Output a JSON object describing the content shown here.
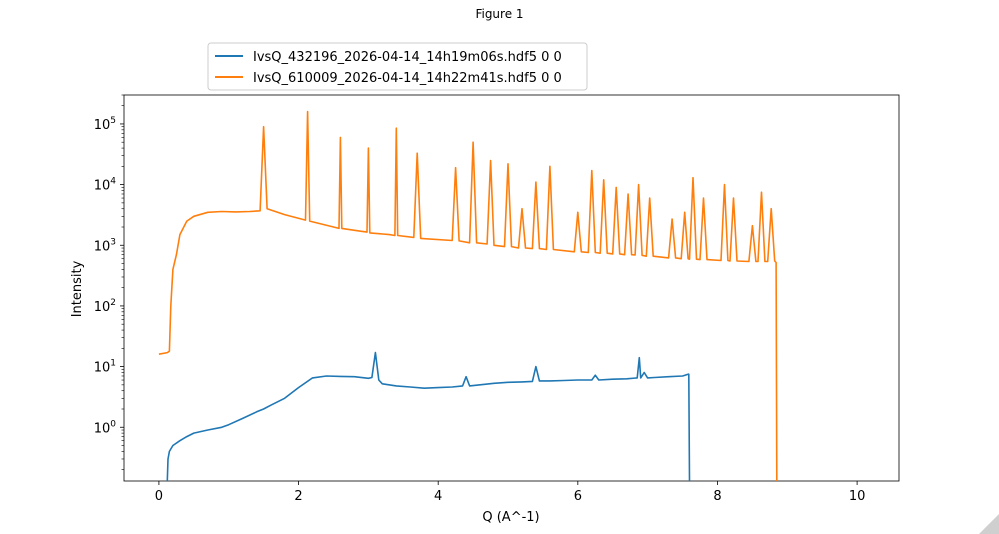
{
  "window": {
    "title": "Figure 1"
  },
  "chart_data": {
    "type": "line",
    "title": "",
    "xlabel": "Q (A^-1)",
    "ylabel": "Intensity",
    "xlim": [
      -0.5,
      10.6
    ],
    "ylim": [
      0.13,
      300000
    ],
    "yscale": "log",
    "grid": false,
    "legend_position": "upper-left-outside",
    "xticks": [
      0,
      2,
      4,
      6,
      8,
      10
    ],
    "xtick_labels": [
      "0",
      "2",
      "4",
      "6",
      "8",
      "10"
    ],
    "yticks": [
      1,
      10,
      100,
      1000,
      10000,
      100000
    ],
    "ytick_labels": [
      "10^0",
      "10^1",
      "10^2",
      "10^3",
      "10^4",
      "10^5"
    ],
    "series": [
      {
        "name": "IvsQ_432196_2026-04-14_14h19m06s.hdf5 0 0",
        "color": "#1f77b4",
        "x": [
          0.12,
          0.13,
          0.15,
          0.2,
          0.3,
          0.4,
          0.5,
          0.7,
          0.9,
          1.0,
          1.2,
          1.4,
          1.5,
          1.6,
          1.8,
          2.0,
          2.2,
          2.4,
          2.6,
          2.8,
          3.0,
          3.05,
          3.1,
          3.15,
          3.2,
          3.4,
          3.6,
          3.8,
          4.0,
          4.2,
          4.35,
          4.4,
          4.45,
          4.6,
          4.8,
          5.0,
          5.2,
          5.35,
          5.4,
          5.45,
          5.6,
          5.8,
          6.0,
          6.2,
          6.25,
          6.3,
          6.5,
          6.7,
          6.85,
          6.88,
          6.9,
          6.95,
          7.0,
          7.1,
          7.3,
          7.5,
          7.58,
          7.59,
          7.6
        ],
        "y": [
          0.13,
          0.3,
          0.4,
          0.5,
          0.6,
          0.7,
          0.8,
          0.9,
          1.0,
          1.1,
          1.4,
          1.8,
          2.0,
          2.3,
          3.0,
          4.5,
          6.5,
          7.0,
          6.9,
          6.8,
          6.4,
          6.6,
          17.0,
          6.0,
          5.2,
          4.8,
          4.6,
          4.4,
          4.5,
          4.6,
          4.8,
          6.8,
          4.8,
          5.0,
          5.3,
          5.5,
          5.6,
          5.7,
          10.0,
          5.8,
          5.8,
          5.9,
          6.0,
          6.0,
          7.2,
          6.0,
          6.2,
          6.3,
          6.5,
          14.0,
          6.5,
          8.0,
          6.5,
          6.6,
          6.8,
          7.0,
          7.5,
          7.5,
          0.13
        ]
      },
      {
        "name": "IvsQ_610009_2026-04-14_14h22m41s.hdf5 0 0",
        "color": "#ff7f0e",
        "x": [
          0.0,
          0.12,
          0.15,
          0.17,
          0.2,
          0.25,
          0.3,
          0.4,
          0.5,
          0.7,
          0.9,
          1.1,
          1.3,
          1.45,
          1.5,
          1.55,
          1.8,
          2.1,
          2.13,
          2.16,
          2.5,
          2.58,
          2.6,
          2.62,
          2.9,
          2.98,
          3.0,
          3.02,
          3.3,
          3.38,
          3.4,
          3.42,
          3.65,
          3.7,
          3.75,
          4.2,
          4.25,
          4.3,
          4.45,
          4.5,
          4.55,
          4.7,
          4.75,
          4.8,
          4.95,
          5.0,
          5.05,
          5.15,
          5.2,
          5.25,
          5.35,
          5.4,
          5.45,
          5.55,
          5.6,
          5.65,
          5.95,
          6.0,
          6.05,
          6.15,
          6.2,
          6.25,
          6.32,
          6.37,
          6.42,
          6.5,
          6.55,
          6.6,
          6.67,
          6.72,
          6.77,
          6.82,
          6.87,
          6.92,
          6.98,
          7.03,
          7.08,
          7.3,
          7.35,
          7.4,
          7.48,
          7.53,
          7.58,
          7.6,
          7.65,
          7.7,
          7.75,
          7.8,
          7.85,
          8.05,
          8.1,
          8.15,
          8.18,
          8.23,
          8.28,
          8.45,
          8.5,
          8.55,
          8.58,
          8.63,
          8.68,
          8.72,
          8.77,
          8.82,
          8.84,
          8.85
        ],
        "y": [
          16,
          17,
          18,
          100,
          400,
          700,
          1500,
          2500,
          3000,
          3500,
          3600,
          3550,
          3600,
          3700,
          90000,
          4000,
          3200,
          2600,
          160000,
          2500,
          2000,
          1900,
          60000,
          1900,
          1700,
          1650,
          40000,
          1600,
          1500,
          1450,
          85000,
          1450,
          1350,
          33000,
          1300,
          1200,
          19000,
          1180,
          1100,
          50000,
          1100,
          1050,
          25000,
          1000,
          950,
          22000,
          950,
          900,
          4000,
          900,
          880,
          11000,
          880,
          850,
          20000,
          850,
          780,
          3500,
          780,
          760,
          17000,
          760,
          740,
          12000,
          740,
          720,
          9000,
          720,
          700,
          7000,
          700,
          690,
          10000,
          680,
          660,
          6000,
          660,
          620,
          2700,
          620,
          600,
          3500,
          600,
          590,
          13000,
          590,
          580,
          6000,
          580,
          560,
          10000,
          560,
          550,
          6000,
          550,
          540,
          2100,
          540,
          540,
          7500,
          540,
          540,
          4000,
          550,
          520,
          0.13
        ]
      }
    ]
  }
}
